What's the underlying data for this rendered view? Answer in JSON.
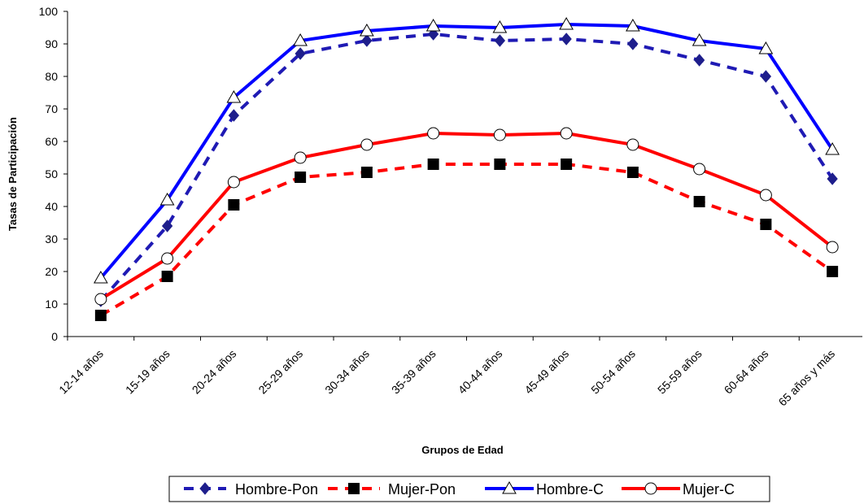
{
  "chart_data": {
    "type": "line",
    "xlabel": "Grupos de Edad",
    "ylabel": "Tasas de Participación",
    "ylim": [
      0,
      100
    ],
    "yticks": [
      0,
      10,
      20,
      30,
      40,
      50,
      60,
      70,
      80,
      90,
      100
    ],
    "grid": false,
    "legend_position": "bottom",
    "categories": [
      "12-14 años",
      "15-19 años",
      "20-24 años",
      "25-29 años",
      "30-34 años",
      "35-39 años",
      "40-44 años",
      "45-49 años",
      "50-54 años",
      "55-59 años",
      "60-64 años",
      "65 años y más"
    ],
    "series": [
      {
        "name": "Hombre-Pon",
        "color": "#1f1ab4",
        "marker_color": "#1e1e8c",
        "dash": true,
        "marker": "diamond",
        "values": [
          11,
          34,
          68,
          87,
          91,
          93,
          91,
          91.5,
          90,
          85,
          80,
          48.5
        ]
      },
      {
        "name": "Mujer-Pon",
        "color": "#ff0000",
        "marker_color": "#000000",
        "dash": true,
        "marker": "square",
        "values": [
          6.5,
          18.5,
          40.5,
          49,
          50.5,
          53,
          53,
          53,
          50.5,
          41.5,
          34.5,
          20
        ]
      },
      {
        "name": "Hombre-C",
        "color": "#0000ff",
        "marker_color": "#000000",
        "dash": false,
        "marker": "triangle",
        "values": [
          18,
          42,
          73.5,
          91,
          94,
          95.5,
          95,
          96,
          95.5,
          91,
          88.5,
          57.5
        ]
      },
      {
        "name": "Mujer-C",
        "color": "#ff0000",
        "marker_color": "#000000",
        "dash": false,
        "marker": "circle",
        "values": [
          11.5,
          24,
          47.5,
          55,
          59,
          62.5,
          62,
          62.5,
          59,
          51.5,
          43.5,
          27.5
        ]
      }
    ]
  }
}
